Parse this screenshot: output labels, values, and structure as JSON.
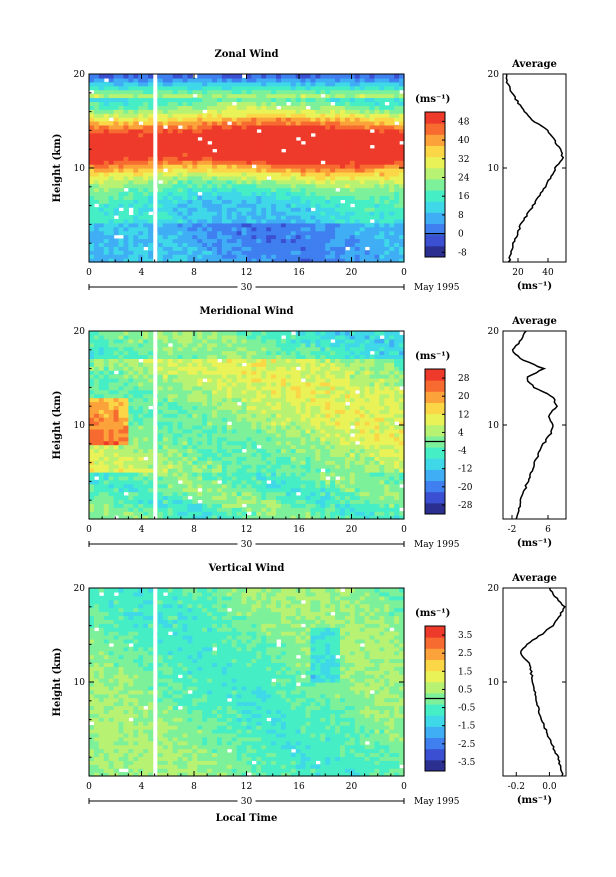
{
  "chart_data": [
    {
      "type": "heatmap",
      "title": "Zonal Wind",
      "ylabel": "Height (km)",
      "ylim": [
        0,
        20
      ],
      "yticks": [
        10,
        20
      ],
      "xlim": [
        0,
        24
      ],
      "xticks": [
        "0",
        "4",
        "8",
        "12",
        "16",
        "20",
        "0"
      ],
      "date_tick": "30",
      "date_label": "May 1995",
      "colorbar": {
        "unit": "(ms⁻¹)",
        "ticks": [
          48,
          40,
          32,
          24,
          16,
          8,
          0,
          -8
        ],
        "min": -10,
        "max": 52
      },
      "profile": {
        "title": "Average",
        "xticks": [
          "20",
          "40"
        ],
        "xlim": [
          10,
          52
        ],
        "xlabel": "(ms⁻¹)",
        "heights": [
          0,
          2,
          4,
          6,
          8,
          10,
          11,
          12,
          13,
          14,
          15,
          16,
          17,
          18,
          19,
          20
        ],
        "values": [
          14,
          17,
          22,
          30,
          38,
          45,
          50,
          48,
          44,
          40,
          30,
          24,
          20,
          16,
          13,
          12
        ]
      }
    },
    {
      "type": "heatmap",
      "title": "Meridional Wind",
      "ylabel": "Height (km)",
      "ylim": [
        0,
        20
      ],
      "yticks": [
        10,
        20
      ],
      "xlim": [
        0,
        24
      ],
      "xticks": [
        "0",
        "4",
        "8",
        "12",
        "16",
        "20",
        "0"
      ],
      "date_tick": "30",
      "date_label": "May 1995",
      "colorbar": {
        "unit": "(ms⁻¹)",
        "ticks": [
          28,
          20,
          12,
          4,
          -4,
          -12,
          -20,
          -28
        ],
        "min": -32,
        "max": 32
      },
      "profile": {
        "title": "Average",
        "xticks": [
          "-2",
          "6"
        ],
        "xlim": [
          -4,
          10
        ],
        "xlabel": "(ms⁻¹)",
        "heights": [
          0,
          2,
          4,
          6,
          8,
          9,
          10,
          11,
          12,
          13,
          14,
          15,
          16,
          17,
          18,
          19,
          20
        ],
        "values": [
          -1,
          0,
          1.5,
          3,
          5,
          6.5,
          7,
          6,
          8,
          7,
          3,
          1,
          5,
          0,
          -2,
          0,
          1
        ]
      }
    },
    {
      "type": "heatmap",
      "title": "Vertical Wind",
      "ylabel": "Height (km)",
      "ylim": [
        0,
        20
      ],
      "yticks": [
        10,
        20
      ],
      "xlim": [
        0,
        24
      ],
      "xticks": [
        "0",
        "4",
        "8",
        "12",
        "16",
        "20",
        "0"
      ],
      "date_tick": "30",
      "date_label": "May 1995",
      "xlabel": "Local Time",
      "colorbar": {
        "unit": "(ms⁻¹)",
        "ticks": [
          3.5,
          2.5,
          1.5,
          0.5,
          -0.5,
          -1.5,
          -2.5,
          -3.5
        ],
        "min": -4,
        "max": 4
      },
      "profile": {
        "title": "Average",
        "xticks": [
          "-0.2",
          "0.0"
        ],
        "xlim": [
          -0.28,
          0.1
        ],
        "xlabel": "(ms⁻¹)",
        "heights": [
          0,
          2,
          4,
          6,
          8,
          10,
          12,
          13,
          14,
          15,
          16,
          17,
          18,
          19,
          20
        ],
        "values": [
          0.08,
          0.05,
          0.0,
          -0.05,
          -0.08,
          -0.1,
          -0.12,
          -0.18,
          -0.14,
          -0.05,
          0.02,
          0.06,
          0.09,
          0.04,
          0.0
        ]
      }
    }
  ]
}
